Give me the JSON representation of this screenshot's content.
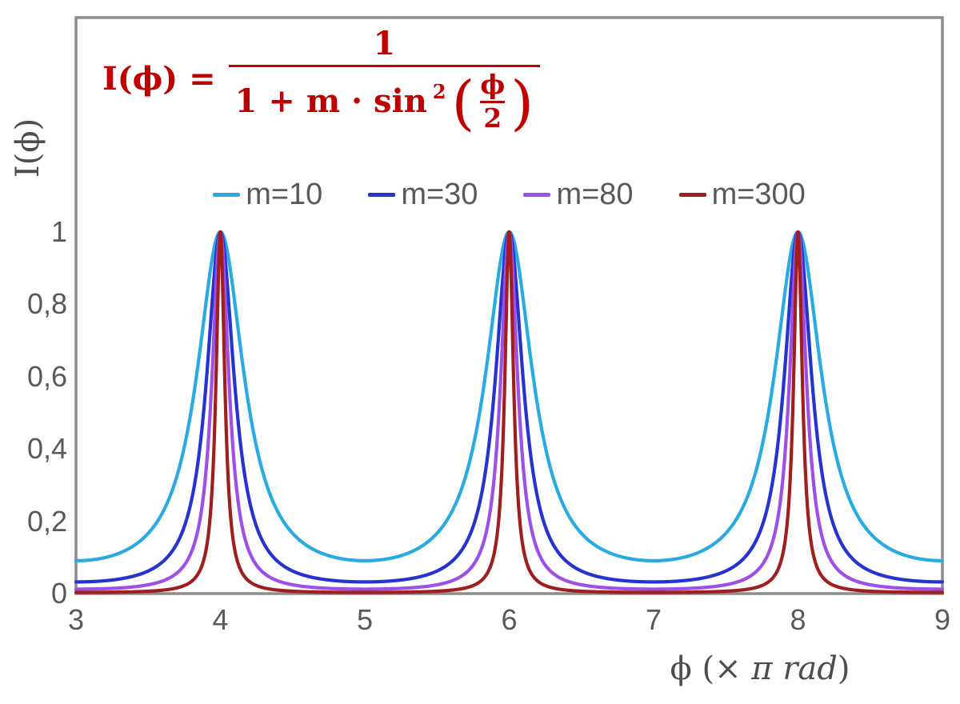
{
  "chart_data": {
    "type": "line",
    "title": "",
    "description": "Airy-type transmission function I(phi) = 1 / (1 + m * sin^2(phi/2)) plotted for four values of m; x axis is phi in units of pi rad",
    "function": "I(x) = 1 / (1 + m * sin^2(x*PI/2)), with x = phi/(pi rad)",
    "xlabel_prefix": "ϕ  (×",
    "xlabel_italic": " π rad",
    "xlabel_suffix": ")",
    "ylabel": "I(ϕ)",
    "xlim": [
      3,
      9
    ],
    "ylim": [
      0,
      1
    ],
    "x_ticks": [
      "3",
      "4",
      "5",
      "6",
      "7",
      "8",
      "9"
    ],
    "y_ticks": [
      "0",
      "0,2",
      "0,4",
      "0,6",
      "0,8",
      "1"
    ],
    "grid": false,
    "legend_position": "top-center-inside",
    "peaks_at_x": [
      4,
      6,
      8
    ],
    "peak_value": 1,
    "minima_at_x": [
      3,
      5,
      7,
      9
    ],
    "series": [
      {
        "name": "m=10",
        "m": 10,
        "color": "#29ABE2",
        "min_value": 0.091
      },
      {
        "name": "m=30",
        "m": 30,
        "color": "#2533D1",
        "min_value": 0.032
      },
      {
        "name": "m=80",
        "m": 80,
        "color": "#9D4FE8",
        "min_value": 0.012
      },
      {
        "name": "m=300",
        "m": 300,
        "color": "#A01E1E",
        "min_value": 0.003
      }
    ],
    "frame_color": "#8C8C8C",
    "tick_label_color": "#595959"
  },
  "formula": {
    "lhs": "I(ϕ) =",
    "numerator": "1",
    "denominator_prefix": "1 + m · sin",
    "sin_exponent": "2",
    "paren_open": "(",
    "inner_numerator": "ϕ",
    "inner_denominator": "2",
    "paren_close": ")",
    "color": "#C00000",
    "text": "I(ϕ) = 1 / (1 + m·sin²(ϕ/2))"
  }
}
